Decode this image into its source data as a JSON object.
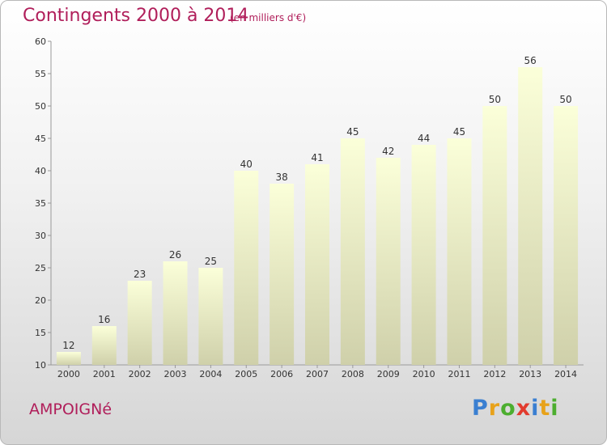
{
  "header": {
    "title": "Contingents 2000 à 2014",
    "unit": "(en milliers d'€)"
  },
  "commune": "AMPOIGNé",
  "brand": {
    "text": "Proxiti",
    "colors": [
      "#3a7fd1",
      "#e8a21a",
      "#4cae2f",
      "#e23b2e",
      "#3a7fd1",
      "#e8a21a",
      "#4cae2f"
    ]
  },
  "colors": {
    "title": "#b01e5a",
    "bar_top": "#fbffd9",
    "bar_bottom": "#cfd0aa"
  },
  "chart_data": {
    "type": "bar",
    "title": "Contingents 2000 à 2014",
    "subtitle": "(en milliers d'€)",
    "categories": [
      "2000",
      "2001",
      "2002",
      "2003",
      "2004",
      "2005",
      "2006",
      "2007",
      "2008",
      "2009",
      "2010",
      "2011",
      "2012",
      "2013",
      "2014"
    ],
    "values": [
      12,
      16,
      23,
      26,
      25,
      40,
      38,
      41,
      45,
      42,
      44,
      45,
      50,
      56,
      50
    ],
    "ylim": [
      10,
      60
    ],
    "yticks": [
      10,
      15,
      20,
      25,
      30,
      35,
      40,
      45,
      50,
      55,
      60
    ],
    "grid": false,
    "show_data_labels": true
  }
}
